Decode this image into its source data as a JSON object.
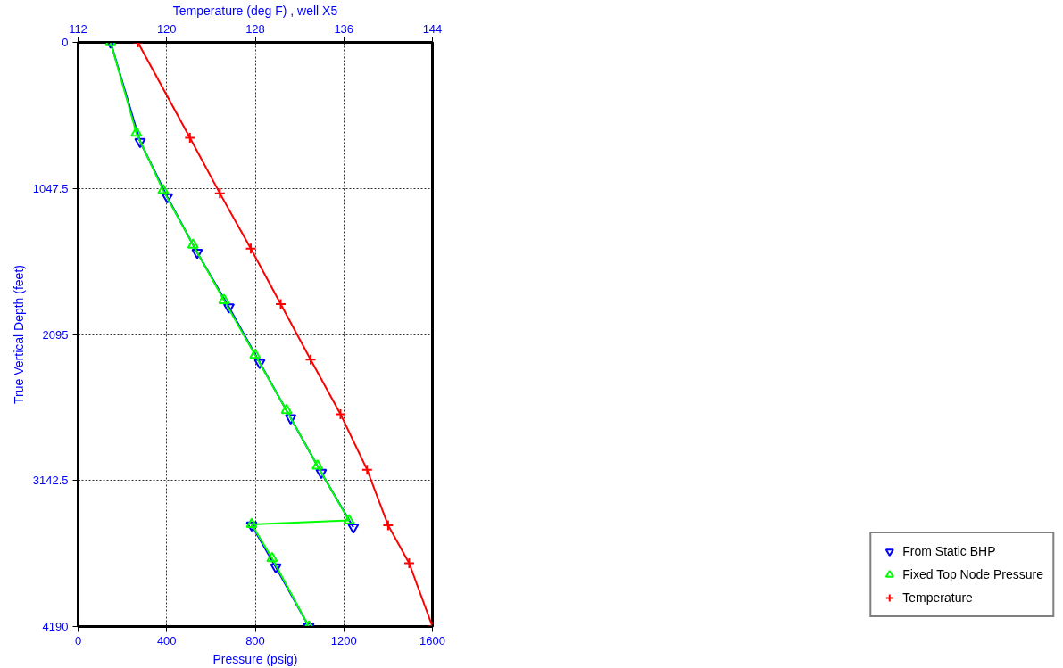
{
  "chart_data": {
    "type": "line",
    "xlabel": "Pressure (psig)",
    "x2label": "Temperature (deg F) , well X5",
    "ylabel": "True Vertical Depth (feet)",
    "xlim": [
      0,
      1600
    ],
    "xticks": [
      0,
      400,
      800,
      1200,
      1600
    ],
    "x2lim": [
      112,
      144
    ],
    "x2ticks": [
      112,
      120,
      128,
      136,
      144
    ],
    "ylim": [
      4190,
      0
    ],
    "yticks": [
      0,
      1047.5,
      2095,
      3142.5,
      4190
    ],
    "grid": true,
    "legend": "bottom right",
    "series": [
      {
        "name": "From Static BHP",
        "color": "#0000ff",
        "marker": "triangle_down",
        "x": [
          147,
          280,
          403,
          538,
          681,
          820,
          960,
          1098,
          1243,
          null,
          784,
          893,
          1042
        ],
        "values": [
          0,
          712,
          1110,
          1508,
          1899,
          2297,
          2695,
          3086,
          3478,
          null,
          3464,
          3764,
          4190
        ]
      },
      {
        "name": "Fixed Top Node Pressure",
        "color": "#00ff00",
        "marker": "triangle",
        "x": [
          147,
          263,
          384,
          519,
          659,
          799,
          941,
          1081,
          1223,
          784,
          876,
          1042
        ],
        "values": [
          0,
          649,
          1061,
          1452,
          1850,
          2242,
          2640,
          3038,
          3429,
          3457,
          3701,
          4190
        ]
      },
      {
        "name": "Temperature",
        "color": "#ff0000",
        "marker": "cross",
        "axis": "x2",
        "x": [
          117.4,
          122.1,
          124.8,
          127.6,
          130.3,
          133.0,
          135.7,
          138.1,
          140.0,
          141.9,
          144.0
        ],
        "values": [
          0,
          684,
          1082,
          1480,
          1878,
          2276,
          2667,
          3065,
          3464,
          3736,
          4190
        ]
      }
    ]
  }
}
